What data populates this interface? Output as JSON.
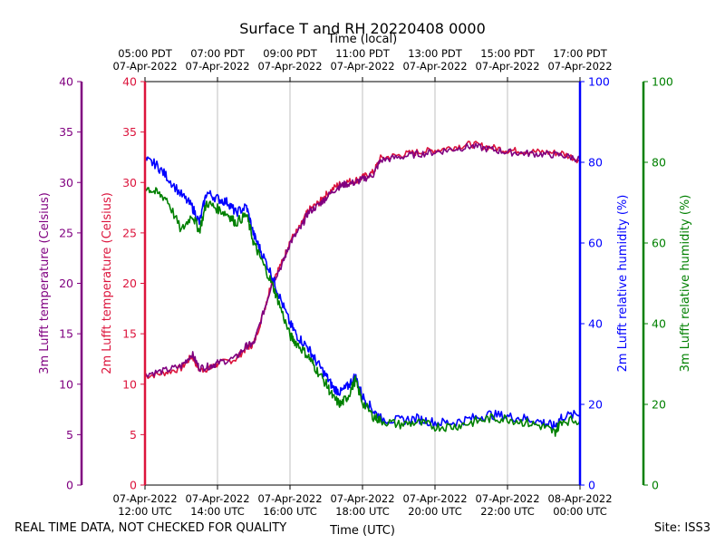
{
  "footer": {
    "left_note": "REAL TIME DATA, NOT CHECKED FOR QUALITY",
    "site": "Site: ISS3"
  },
  "colors": {
    "t3m": "#800080",
    "t2m": "#dc143c",
    "rh2m": "#0000ff",
    "rh3m": "#008000",
    "grid": "#b0b0b0"
  },
  "chart_data": {
    "type": "line",
    "title": "Surface T and RH 20220408 0000",
    "xlabel": "Time (UTC)",
    "top_xlabel": "Time (local)",
    "x_hours_utc": [
      12,
      24
    ],
    "x_tick_hours": [
      12,
      14,
      16,
      18,
      20,
      22,
      24
    ],
    "x_tick_labels_utc": [
      [
        "07-Apr-2022",
        "12:00 UTC"
      ],
      [
        "07-Apr-2022",
        "14:00 UTC"
      ],
      [
        "07-Apr-2022",
        "16:00 UTC"
      ],
      [
        "07-Apr-2022",
        "18:00 UTC"
      ],
      [
        "07-Apr-2022",
        "20:00 UTC"
      ],
      [
        "07-Apr-2022",
        "22:00 UTC"
      ],
      [
        "08-Apr-2022",
        "00:00 UTC"
      ]
    ],
    "x_tick_labels_local": [
      [
        "05:00 PDT",
        "07-Apr-2022"
      ],
      [
        "07:00 PDT",
        "07-Apr-2022"
      ],
      [
        "09:00 PDT",
        "07-Apr-2022"
      ],
      [
        "11:00 PDT",
        "07-Apr-2022"
      ],
      [
        "13:00 PDT",
        "07-Apr-2022"
      ],
      [
        "15:00 PDT",
        "07-Apr-2022"
      ],
      [
        "17:00 PDT",
        "07-Apr-2022"
      ]
    ],
    "y_axes": [
      {
        "id": "t3m",
        "label": "3m Lufft temperature (Celsius)",
        "range": [
          0,
          40
        ],
        "ticks": [
          0,
          5,
          10,
          15,
          20,
          25,
          30,
          35,
          40
        ],
        "placement": "outer-left"
      },
      {
        "id": "t2m",
        "label": "2m Lufft temperature (Celsius)",
        "range": [
          0,
          40
        ],
        "ticks": [
          0,
          5,
          10,
          15,
          20,
          25,
          30,
          35,
          40
        ],
        "placement": "left"
      },
      {
        "id": "rh2m",
        "label": "2m Lufft relative humidity (%)",
        "range": [
          0,
          100
        ],
        "ticks": [
          0,
          20,
          40,
          60,
          80,
          100
        ],
        "placement": "right"
      },
      {
        "id": "rh3m",
        "label": "3m Lufft relative humidity (%)",
        "range": [
          0,
          100
        ],
        "ticks": [
          0,
          20,
          40,
          60,
          80,
          100
        ],
        "placement": "outer-right"
      }
    ],
    "grid": "vertical",
    "series": [
      {
        "name": "3m Lufft temperature",
        "axis": "t3m",
        "x": [
          12.0,
          12.5,
          13.0,
          13.3,
          13.5,
          13.8,
          14.0,
          14.5,
          14.8,
          15.0,
          15.3,
          15.5,
          15.8,
          16.0,
          16.3,
          16.5,
          16.8,
          17.0,
          17.3,
          17.5,
          17.8,
          18.0,
          18.3,
          18.5,
          19.0,
          19.5,
          20.0,
          20.5,
          21.0,
          21.5,
          22.0,
          22.5,
          23.0,
          23.5,
          24.0
        ],
        "values": [
          11.0,
          11.3,
          11.8,
          13.0,
          11.6,
          11.8,
          12.1,
          12.6,
          13.8,
          14.0,
          17.5,
          20.0,
          22.0,
          24.0,
          25.5,
          27.0,
          27.8,
          28.5,
          29.5,
          29.8,
          30.0,
          30.3,
          30.8,
          32.2,
          32.5,
          32.8,
          33.0,
          33.3,
          33.6,
          33.3,
          33.0,
          32.9,
          32.8,
          32.7,
          32.3
        ]
      },
      {
        "name": "2m Lufft temperature",
        "axis": "t2m",
        "x": [
          12.0,
          12.5,
          13.0,
          13.3,
          13.5,
          13.8,
          14.0,
          14.5,
          14.8,
          15.0,
          15.3,
          15.5,
          15.8,
          16.0,
          16.3,
          16.5,
          16.8,
          17.0,
          17.3,
          17.5,
          17.8,
          18.0,
          18.3,
          18.5,
          19.0,
          19.5,
          20.0,
          20.5,
          21.0,
          21.5,
          22.0,
          22.5,
          23.0,
          23.5,
          24.0
        ],
        "values": [
          10.8,
          11.1,
          11.6,
          12.8,
          11.4,
          11.6,
          12.0,
          12.5,
          13.6,
          14.0,
          17.5,
          20.2,
          22.2,
          24.2,
          25.7,
          27.2,
          28.0,
          28.8,
          29.7,
          30.0,
          30.2,
          30.5,
          31.0,
          32.4,
          32.7,
          33.0,
          33.2,
          33.5,
          33.8,
          33.5,
          33.2,
          33.1,
          33.0,
          32.9,
          32.2
        ]
      },
      {
        "name": "2m Lufft relative humidity",
        "axis": "rh2m",
        "x": [
          12.0,
          12.3,
          12.6,
          13.0,
          13.3,
          13.5,
          13.7,
          14.0,
          14.3,
          14.5,
          14.8,
          15.0,
          15.2,
          15.5,
          15.7,
          16.0,
          16.2,
          16.5,
          16.7,
          17.0,
          17.2,
          17.4,
          17.6,
          17.8,
          18.0,
          18.3,
          18.5,
          19.0,
          19.5,
          20.0,
          20.5,
          21.0,
          21.5,
          22.0,
          22.5,
          23.0,
          23.3,
          23.5,
          24.0
        ],
        "values": [
          80.5,
          79.5,
          76.5,
          72.0,
          69.0,
          65.0,
          72.5,
          71.0,
          70.0,
          67.5,
          69.0,
          62.0,
          58.0,
          52.0,
          47.0,
          40.0,
          37.0,
          34.0,
          31.0,
          27.0,
          24.0,
          23.0,
          24.5,
          27.0,
          22.0,
          18.5,
          16.5,
          16.0,
          16.5,
          15.5,
          15.5,
          16.5,
          17.5,
          17.0,
          16.5,
          15.5,
          14.5,
          17.0,
          17.5
        ]
      },
      {
        "name": "3m Lufft relative humidity",
        "axis": "rh3m",
        "x": [
          12.0,
          12.3,
          12.6,
          13.0,
          13.3,
          13.5,
          13.7,
          14.0,
          14.3,
          14.5,
          14.8,
          15.0,
          15.2,
          15.5,
          15.7,
          16.0,
          16.2,
          16.5,
          16.7,
          17.0,
          17.2,
          17.4,
          17.6,
          17.8,
          18.0,
          18.3,
          18.5,
          19.0,
          19.5,
          20.0,
          20.5,
          21.0,
          21.5,
          22.0,
          22.5,
          23.0,
          23.3,
          23.5,
          24.0
        ],
        "values": [
          74.0,
          72.5,
          71.0,
          63.0,
          67.0,
          63.0,
          70.0,
          68.5,
          67.0,
          65.0,
          67.0,
          60.0,
          56.0,
          50.0,
          45.0,
          37.0,
          35.0,
          32.0,
          29.0,
          25.0,
          21.5,
          20.0,
          22.0,
          26.0,
          20.5,
          17.0,
          16.0,
          15.0,
          15.5,
          14.5,
          14.5,
          15.5,
          16.5,
          16.5,
          15.5,
          14.5,
          13.0,
          16.0,
          16.0
        ]
      }
    ]
  }
}
